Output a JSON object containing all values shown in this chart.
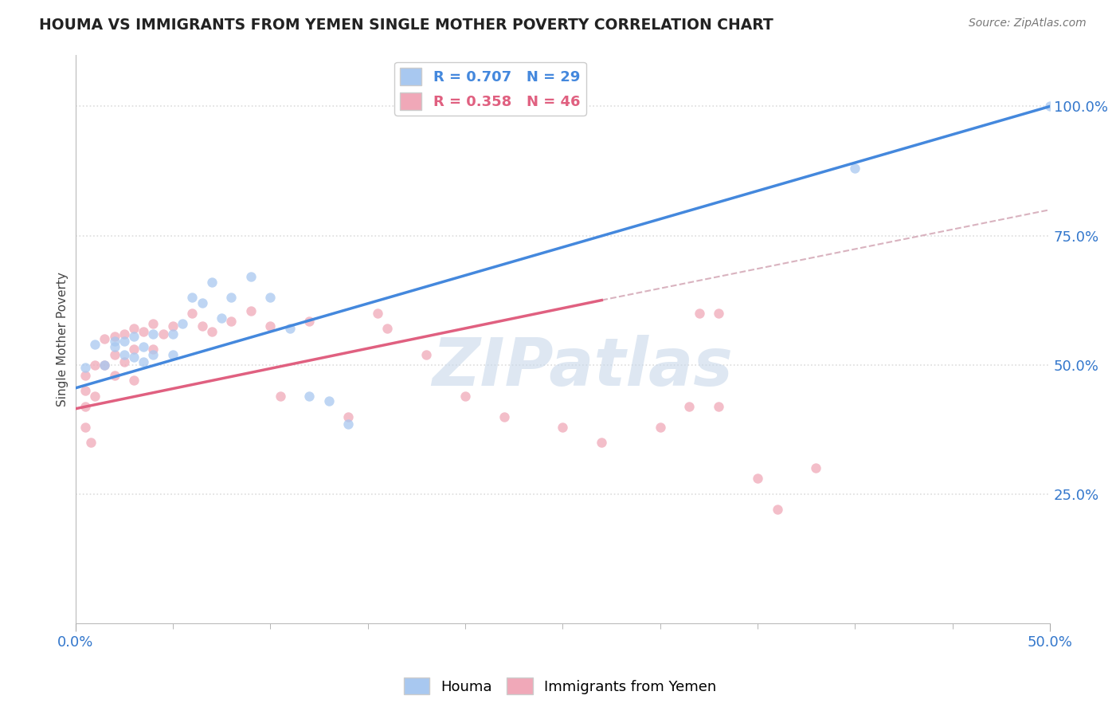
{
  "title": "HOUMA VS IMMIGRANTS FROM YEMEN SINGLE MOTHER POVERTY CORRELATION CHART",
  "source_text": "Source: ZipAtlas.com",
  "ylabel": "Single Mother Poverty",
  "xlim": [
    0.0,
    0.5
  ],
  "ylim": [
    0.0,
    1.1
  ],
  "xtick_labels": [
    "0.0%",
    "50.0%"
  ],
  "xtick_positions": [
    0.0,
    0.5
  ],
  "ytick_labels": [
    "25.0%",
    "50.0%",
    "75.0%",
    "100.0%"
  ],
  "ytick_positions": [
    0.25,
    0.5,
    0.75,
    1.0
  ],
  "legend1_r": "R = 0.707",
  "legend1_n": "N = 29",
  "legend2_r": "R = 0.358",
  "legend2_n": "N = 46",
  "houma_color": "#a8c8f0",
  "yemen_color": "#f0a8b8",
  "line_blue": "#4488dd",
  "line_pink": "#e06080",
  "line_dash_color": "#d0a0b0",
  "watermark": "ZIPatlas",
  "watermark_color": "#c8d8ea",
  "houma_x": [
    0.005,
    0.01,
    0.015,
    0.02,
    0.02,
    0.025,
    0.025,
    0.03,
    0.03,
    0.035,
    0.035,
    0.04,
    0.04,
    0.05,
    0.05,
    0.055,
    0.06,
    0.065,
    0.07,
    0.075,
    0.08,
    0.09,
    0.1,
    0.11,
    0.12,
    0.13,
    0.14,
    0.4,
    0.5
  ],
  "houma_y": [
    0.495,
    0.54,
    0.5,
    0.545,
    0.535,
    0.545,
    0.52,
    0.555,
    0.515,
    0.535,
    0.505,
    0.56,
    0.52,
    0.56,
    0.52,
    0.58,
    0.63,
    0.62,
    0.66,
    0.59,
    0.63,
    0.67,
    0.63,
    0.57,
    0.44,
    0.43,
    0.385,
    0.88,
    1.0
  ],
  "yemen_x": [
    0.005,
    0.005,
    0.005,
    0.005,
    0.008,
    0.01,
    0.01,
    0.015,
    0.015,
    0.02,
    0.02,
    0.02,
    0.025,
    0.025,
    0.03,
    0.03,
    0.03,
    0.035,
    0.04,
    0.04,
    0.045,
    0.05,
    0.06,
    0.065,
    0.07,
    0.08,
    0.09,
    0.1,
    0.105,
    0.12,
    0.14,
    0.155,
    0.16,
    0.18,
    0.2,
    0.22,
    0.25,
    0.27,
    0.3,
    0.315,
    0.32,
    0.33,
    0.33,
    0.35,
    0.36,
    0.38
  ],
  "yemen_y": [
    0.48,
    0.45,
    0.42,
    0.38,
    0.35,
    0.5,
    0.44,
    0.55,
    0.5,
    0.555,
    0.52,
    0.48,
    0.56,
    0.505,
    0.57,
    0.53,
    0.47,
    0.565,
    0.58,
    0.53,
    0.56,
    0.575,
    0.6,
    0.575,
    0.565,
    0.585,
    0.605,
    0.575,
    0.44,
    0.585,
    0.4,
    0.6,
    0.57,
    0.52,
    0.44,
    0.4,
    0.38,
    0.35,
    0.38,
    0.42,
    0.6,
    0.42,
    0.6,
    0.28,
    0.22,
    0.3
  ],
  "background_color": "#ffffff",
  "grid_color": "#dddddd"
}
